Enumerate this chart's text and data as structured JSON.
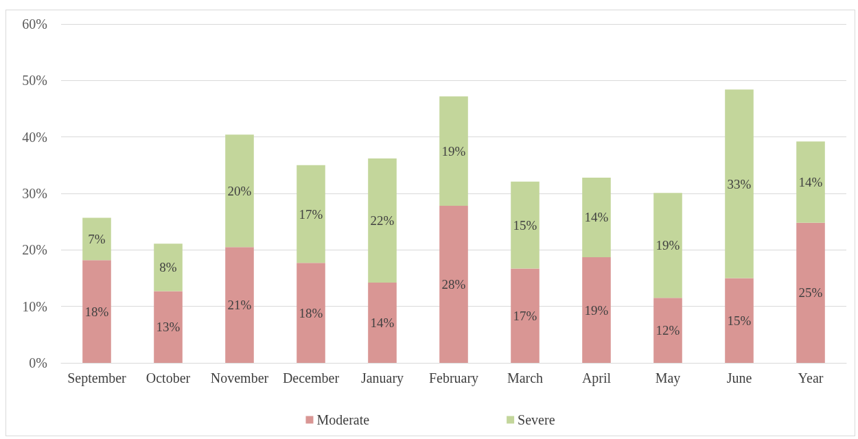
{
  "chart_data": {
    "type": "bar",
    "stacked": true,
    "grid": "y",
    "legend": "bottom",
    "categories": [
      "September",
      "October",
      "November",
      "December",
      "January",
      "February",
      "March",
      "April",
      "May",
      "June",
      "Year"
    ],
    "series": [
      {
        "name": "Moderate",
        "color": "#d99694",
        "values": [
          18.2,
          12.7,
          20.5,
          17.7,
          14.2,
          27.8,
          16.7,
          18.7,
          11.5,
          15.0,
          24.8
        ],
        "value_labels": [
          "18%",
          "13%",
          "21%",
          "18%",
          "14%",
          "28%",
          "17%",
          "19%",
          "12%",
          "15%",
          "25%"
        ]
      },
      {
        "name": "Severe",
        "color": "#c3d69b",
        "values": [
          7.5,
          8.4,
          19.9,
          17.3,
          22.0,
          19.4,
          15.4,
          14.1,
          18.6,
          33.4,
          14.4
        ],
        "value_labels": [
          "7%",
          "8%",
          "20%",
          "17%",
          "22%",
          "19%",
          "15%",
          "14%",
          "19%",
          "33%",
          "14%"
        ]
      }
    ],
    "ylim": [
      0,
      60
    ],
    "yticks": [
      {
        "value": 0,
        "label": "0%"
      },
      {
        "value": 10,
        "label": "10%"
      },
      {
        "value": 20,
        "label": "20%"
      },
      {
        "value": 30,
        "label": "30%"
      },
      {
        "value": 40,
        "label": "40%"
      },
      {
        "value": 50,
        "label": "50%"
      },
      {
        "value": 60,
        "label": "60%"
      }
    ]
  }
}
